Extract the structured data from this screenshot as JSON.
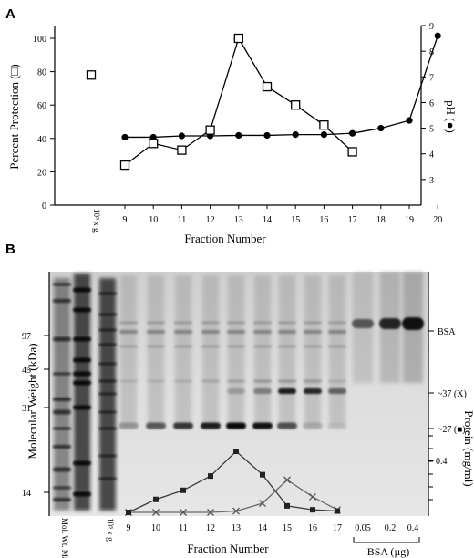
{
  "figure": {
    "panel_a_label": "A",
    "panel_b_label": "B"
  },
  "chart_data": [
    {
      "type": "line",
      "x_categories": [
        "10⁵ x g",
        "9",
        "10",
        "11",
        "12",
        "13",
        "14",
        "15",
        "16",
        "17",
        "18",
        "19",
        "20"
      ],
      "xlabel": "Fraction Number",
      "ylabel_left": "Percent Protection (□)",
      "ylabel_right": "pH (●)",
      "ylim_left": [
        0,
        100
      ],
      "ylim_right": [
        2,
        9
      ],
      "yticks_left": [
        "0",
        "20",
        "40",
        "60",
        "80",
        "100"
      ],
      "yticks_right": [
        "3",
        "4",
        "5",
        "6",
        "7",
        "8",
        "9"
      ],
      "series": [
        {
          "name": "Percent Protection",
          "marker": "open-square",
          "axis": "left",
          "connected": [
            [
              "9",
              24
            ],
            [
              "10",
              37
            ],
            [
              "11",
              33
            ],
            [
              "12",
              45
            ],
            [
              "13",
              100
            ],
            [
              "14",
              71
            ],
            [
              "15",
              60
            ],
            [
              "16",
              48
            ],
            [
              "17",
              32
            ]
          ],
          "standalone": [
            [
              "10⁵ x g",
              78
            ]
          ]
        },
        {
          "name": "pH",
          "marker": "filled-circle",
          "axis": "right",
          "connected": [
            [
              "9",
              4.65
            ],
            [
              "10",
              4.65
            ],
            [
              "11",
              4.7
            ],
            [
              "12",
              4.7
            ],
            [
              "13",
              4.72
            ],
            [
              "14",
              4.72
            ],
            [
              "15",
              4.75
            ],
            [
              "16",
              4.75
            ],
            [
              "17",
              4.8
            ],
            [
              "18",
              5.0
            ],
            [
              "19",
              5.3
            ],
            [
              "20",
              8.6
            ]
          ]
        }
      ]
    },
    {
      "type": "line",
      "overlay_on": "gel",
      "x_categories": [
        "9",
        "10",
        "11",
        "12",
        "13",
        "14",
        "15",
        "16",
        "17"
      ],
      "ylabel_right": "Protein (mg/ml)",
      "ytick_right": "0.4",
      "series": [
        {
          "name": "~27 (■)",
          "marker": "filled-square",
          "values": [
            0.0,
            0.1,
            0.17,
            0.28,
            0.47,
            0.29,
            0.05,
            0.02,
            0.01
          ]
        },
        {
          "name": "~37 (X)",
          "marker": "x",
          "values": [
            0.0,
            0.0,
            0.0,
            0.0,
            0.01,
            0.07,
            0.25,
            0.12,
            0.02
          ]
        }
      ]
    }
  ],
  "gel": {
    "ylabel": "Molecular Weight (kDa)",
    "mw_ticks": [
      "97",
      "45",
      "31",
      "14"
    ],
    "right_labels": [
      "BSA",
      "~37 (X)",
      "~27 (■)"
    ],
    "lane_labels": [
      "Mol. Wt. Markers",
      "10⁵ x g",
      "9",
      "10",
      "11",
      "12",
      "13",
      "14",
      "15",
      "16",
      "17",
      "0.05",
      "0.2",
      "0.4"
    ],
    "xlabel": "Fraction Number",
    "bsa_group_label": "BSA (µg)"
  }
}
